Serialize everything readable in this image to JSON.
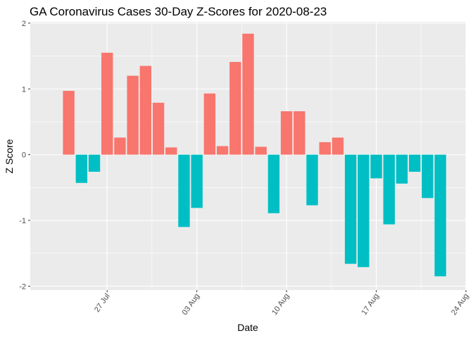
{
  "chart_data": {
    "type": "bar",
    "title": "GA Coronavirus Cases 30-Day Z-Scores for 2020-08-23",
    "xlabel": "Date",
    "ylabel": "Z Score",
    "ylim": [
      -2.06,
      2.02
    ],
    "xlim": [
      "2020-07-21",
      "2020-08-24"
    ],
    "y_ticks": [
      -2,
      -1,
      0,
      1,
      2
    ],
    "y_tick_labels": [
      "-2",
      "-1",
      "0",
      "1",
      "2"
    ],
    "x_ticks": [
      "2020-07-27",
      "2020-08-03",
      "2020-08-10",
      "2020-08-17",
      "2020-08-24"
    ],
    "x_tick_labels": [
      "27 Jul",
      "03 Aug",
      "10 Aug",
      "17 Aug",
      "24 Aug"
    ],
    "grid": true,
    "legend": "none",
    "colors": {
      "positive": "#F8766D",
      "negative": "#00BFC4",
      "panel": "#EBEBEB",
      "grid": "#FFFFFF"
    },
    "x": [
      "2020-07-24",
      "2020-07-25",
      "2020-07-26",
      "2020-07-27",
      "2020-07-28",
      "2020-07-29",
      "2020-07-30",
      "2020-07-31",
      "2020-08-01",
      "2020-08-02",
      "2020-08-03",
      "2020-08-04",
      "2020-08-05",
      "2020-08-06",
      "2020-08-07",
      "2020-08-08",
      "2020-08-09",
      "2020-08-10",
      "2020-08-11",
      "2020-08-12",
      "2020-08-13",
      "2020-08-14",
      "2020-08-15",
      "2020-08-16",
      "2020-08-17",
      "2020-08-18",
      "2020-08-19",
      "2020-08-20",
      "2020-08-21",
      "2020-08-22",
      "2020-08-23"
    ],
    "values": [
      0.97,
      -0.43,
      -0.26,
      1.55,
      0.26,
      1.2,
      1.35,
      0.79,
      0.11,
      -1.1,
      -0.81,
      0.93,
      0.13,
      1.41,
      1.84,
      0.12,
      -0.89,
      0.66,
      0.66,
      -0.77,
      0.19,
      0.26,
      -1.66,
      -1.71,
      -0.36,
      -1.06,
      -0.44,
      -0.26,
      -0.66,
      -1.85,
      0.0
    ]
  }
}
